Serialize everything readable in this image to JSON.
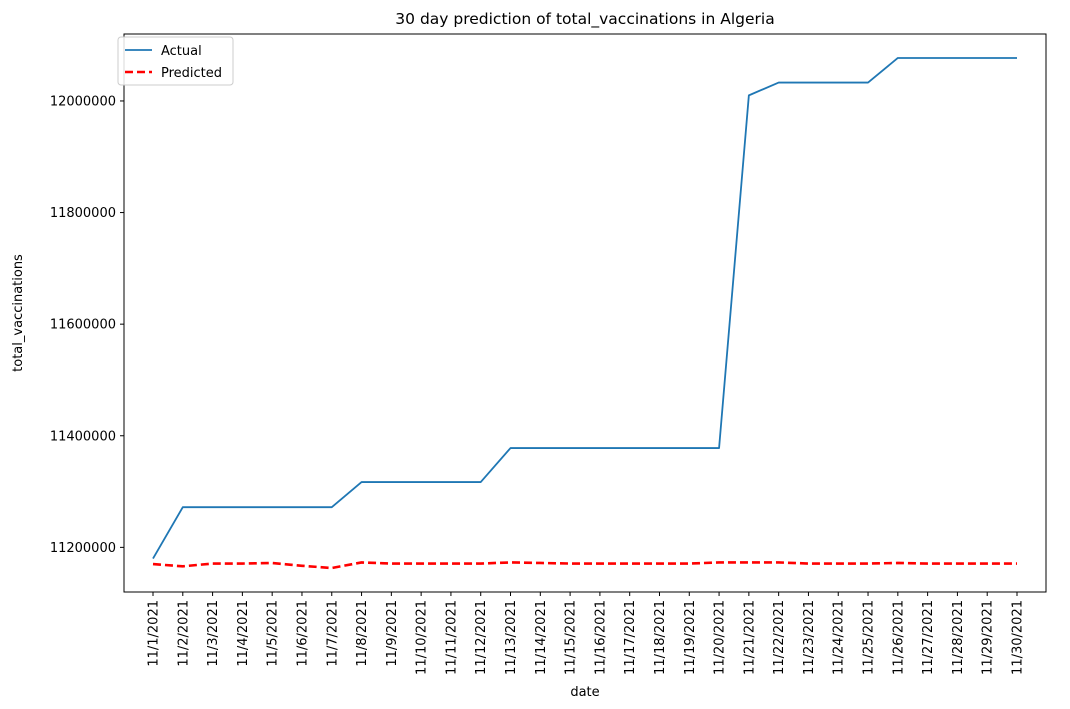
{
  "chart_data": {
    "type": "line",
    "title": "30 day prediction of total_vaccinations in Algeria",
    "xlabel": "date",
    "ylabel": "total_vaccinations",
    "x": [
      "11/1/2021",
      "11/2/2021",
      "11/3/2021",
      "11/4/2021",
      "11/5/2021",
      "11/6/2021",
      "11/7/2021",
      "11/8/2021",
      "11/9/2021",
      "11/10/2021",
      "11/11/2021",
      "11/12/2021",
      "11/13/2021",
      "11/14/2021",
      "11/15/2021",
      "11/16/2021",
      "11/17/2021",
      "11/18/2021",
      "11/19/2021",
      "11/20/2021",
      "11/21/2021",
      "11/22/2021",
      "11/23/2021",
      "11/24/2021",
      "11/25/2021",
      "11/26/2021",
      "11/27/2021",
      "11/28/2021",
      "11/29/2021",
      "11/30/2021"
    ],
    "series": [
      {
        "name": "Actual",
        "color": "#1f77b4",
        "style": "solid",
        "values": [
          11180000,
          11272000,
          11272000,
          11272000,
          11272000,
          11272000,
          11272000,
          11317000,
          11317000,
          11317000,
          11317000,
          11317000,
          11378000,
          11378000,
          11378000,
          11378000,
          11378000,
          11378000,
          11378000,
          11378000,
          12010000,
          12033000,
          12033000,
          12033000,
          12033000,
          12077000,
          12077000,
          12077000,
          12077000,
          12077000
        ]
      },
      {
        "name": "Predicted",
        "color": "#ff0000",
        "style": "dashed",
        "values": [
          11170000,
          11166000,
          11171000,
          11171000,
          11172000,
          11167000,
          11163000,
          11173000,
          11171000,
          11171000,
          11171000,
          11171000,
          11173000,
          11172000,
          11171000,
          11171000,
          11171000,
          11171000,
          11171000,
          11173000,
          11173000,
          11173000,
          11171000,
          11171000,
          11171000,
          11172000,
          11171000,
          11171000,
          11171000,
          11171000
        ]
      }
    ],
    "yticks": [
      11200000,
      11400000,
      11600000,
      11800000,
      12000000
    ],
    "ylim": [
      11120000,
      12120000
    ],
    "grid": false,
    "legend_position": "top-left"
  }
}
